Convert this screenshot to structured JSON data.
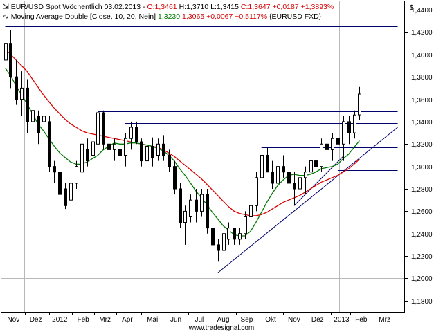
{
  "chart_data": {
    "type": "candlestick",
    "header": {
      "line1": {
        "symbol": "EUR/USD Spot Wöchentlich",
        "date": "03.02.2013",
        "o_text": "O:1,3461",
        "h_text": "H:1,3710",
        "l_text": "L:1,3415",
        "c_text": "C:1,3647",
        "chg_text": "+0,0187",
        "pct_text": "+1,3893%"
      },
      "line2": {
        "indicator": "Moving Average Double [Close, 10, 20, Nein]",
        "v1": "1,3230",
        "v2": "1,3065",
        "chg": "+0,0067",
        "pct": "+0,5117%",
        "ref": "{EURUSD FXD}"
      }
    },
    "currency_label": "$",
    "watermark": "www.tradesignal.com",
    "y_ticks": [
      "1,4400",
      "1,4200",
      "1,4000",
      "1,3800",
      "1,3600",
      "1,3400",
      "1,3200",
      "1,3000",
      "1,2800",
      "1,2600",
      "1,2400",
      "1,2200",
      "1,2000",
      "1,1800"
    ],
    "ylim": [
      1.17,
      1.4475
    ],
    "x_labels": [
      "Nov",
      "Dez",
      "2012",
      "Feb",
      "Mrz",
      "Apr",
      "Mai",
      "Jun",
      "Jul",
      "Aug",
      "Sep",
      "Okt",
      "Nov",
      "Dez",
      "2013",
      "Feb",
      "Mrz"
    ],
    "x_label_bars": [
      1.5,
      5.6,
      10.0,
      14.3,
      18.3,
      22.4,
      27.0,
      31.3,
      35.6,
      40.0,
      44.3,
      48.7,
      53.0,
      57.3,
      61.7,
      65.3,
      69.6
    ],
    "x_bar_range": [
      -0.7,
      73.2
    ],
    "vertical_grid_bars": [
      3.5,
      61.3
    ],
    "horizontal_grid_values": [
      1.4,
      1.3,
      1.2
    ],
    "bars": [
      {
        "o": 1.395,
        "h": 1.425,
        "l": 1.382,
        "c": 1.41
      },
      {
        "o": 1.41,
        "h": 1.422,
        "l": 1.37,
        "c": 1.38
      },
      {
        "o": 1.38,
        "h": 1.395,
        "l": 1.355,
        "c": 1.36
      },
      {
        "o": 1.36,
        "h": 1.385,
        "l": 1.345,
        "c": 1.37
      },
      {
        "o": 1.37,
        "h": 1.378,
        "l": 1.33,
        "c": 1.34
      },
      {
        "o": 1.34,
        "h": 1.355,
        "l": 1.32,
        "c": 1.35
      },
      {
        "o": 1.345,
        "h": 1.35,
        "l": 1.32,
        "c": 1.33
      },
      {
        "o": 1.34,
        "h": 1.36,
        "l": 1.33,
        "c": 1.345
      },
      {
        "o": 1.34,
        "h": 1.345,
        "l": 1.295,
        "c": 1.3
      },
      {
        "o": 1.3,
        "h": 1.305,
        "l": 1.285,
        "c": 1.295
      },
      {
        "o": 1.295,
        "h": 1.3,
        "l": 1.27,
        "c": 1.275
      },
      {
        "o": 1.28,
        "h": 1.285,
        "l": 1.262,
        "c": 1.265
      },
      {
        "o": 1.27,
        "h": 1.29,
        "l": 1.265,
        "c": 1.285
      },
      {
        "o": 1.285,
        "h": 1.305,
        "l": 1.28,
        "c": 1.3
      },
      {
        "o": 1.295,
        "h": 1.325,
        "l": 1.29,
        "c": 1.32
      },
      {
        "o": 1.315,
        "h": 1.325,
        "l": 1.3,
        "c": 1.305
      },
      {
        "o": 1.31,
        "h": 1.33,
        "l": 1.305,
        "c": 1.322
      },
      {
        "o": 1.32,
        "h": 1.35,
        "l": 1.315,
        "c": 1.348
      },
      {
        "o": 1.348,
        "h": 1.35,
        "l": 1.315,
        "c": 1.32
      },
      {
        "o": 1.32,
        "h": 1.33,
        "l": 1.31,
        "c": 1.315
      },
      {
        "o": 1.315,
        "h": 1.325,
        "l": 1.305,
        "c": 1.32
      },
      {
        "o": 1.315,
        "h": 1.325,
        "l": 1.305,
        "c": 1.31
      },
      {
        "o": 1.31,
        "h": 1.33,
        "l": 1.3,
        "c": 1.325
      },
      {
        "o": 1.325,
        "h": 1.34,
        "l": 1.315,
        "c": 1.335
      },
      {
        "o": 1.335,
        "h": 1.34,
        "l": 1.32,
        "c": 1.322
      },
      {
        "o": 1.322,
        "h": 1.325,
        "l": 1.3,
        "c": 1.305
      },
      {
        "o": 1.305,
        "h": 1.325,
        "l": 1.3,
        "c": 1.318
      },
      {
        "o": 1.318,
        "h": 1.326,
        "l": 1.3,
        "c": 1.308
      },
      {
        "o": 1.31,
        "h": 1.325,
        "l": 1.305,
        "c": 1.32
      },
      {
        "o": 1.32,
        "h": 1.328,
        "l": 1.305,
        "c": 1.31
      },
      {
        "o": 1.31,
        "h": 1.315,
        "l": 1.295,
        "c": 1.3
      },
      {
        "o": 1.3,
        "h": 1.305,
        "l": 1.275,
        "c": 1.28
      },
      {
        "o": 1.28,
        "h": 1.285,
        "l": 1.245,
        "c": 1.25
      },
      {
        "o": 1.25,
        "h": 1.265,
        "l": 1.23,
        "c": 1.26
      },
      {
        "o": 1.255,
        "h": 1.275,
        "l": 1.25,
        "c": 1.27
      },
      {
        "o": 1.27,
        "h": 1.28,
        "l": 1.25,
        "c": 1.26
      },
      {
        "o": 1.26,
        "h": 1.28,
        "l": 1.255,
        "c": 1.275
      },
      {
        "o": 1.275,
        "h": 1.28,
        "l": 1.24,
        "c": 1.245
      },
      {
        "o": 1.245,
        "h": 1.25,
        "l": 1.225,
        "c": 1.23
      },
      {
        "o": 1.23,
        "h": 1.235,
        "l": 1.215,
        "c": 1.225
      },
      {
        "o": 1.225,
        "h": 1.245,
        "l": 1.205,
        "c": 1.24
      },
      {
        "o": 1.235,
        "h": 1.25,
        "l": 1.23,
        "c": 1.245
      },
      {
        "o": 1.245,
        "h": 1.245,
        "l": 1.23,
        "c": 1.235
      },
      {
        "o": 1.235,
        "h": 1.245,
        "l": 1.23,
        "c": 1.24
      },
      {
        "o": 1.24,
        "h": 1.26,
        "l": 1.235,
        "c": 1.255
      },
      {
        "o": 1.255,
        "h": 1.275,
        "l": 1.25,
        "c": 1.265
      },
      {
        "o": 1.265,
        "h": 1.295,
        "l": 1.26,
        "c": 1.29
      },
      {
        "o": 1.29,
        "h": 1.315,
        "l": 1.285,
        "c": 1.31
      },
      {
        "o": 1.31,
        "h": 1.317,
        "l": 1.295,
        "c": 1.295
      },
      {
        "o": 1.295,
        "h": 1.305,
        "l": 1.28,
        "c": 1.285
      },
      {
        "o": 1.285,
        "h": 1.305,
        "l": 1.28,
        "c": 1.3
      },
      {
        "o": 1.3,
        "h": 1.31,
        "l": 1.29,
        "c": 1.295
      },
      {
        "o": 1.295,
        "h": 1.3,
        "l": 1.275,
        "c": 1.285
      },
      {
        "o": 1.285,
        "h": 1.295,
        "l": 1.265,
        "c": 1.28
      },
      {
        "o": 1.28,
        "h": 1.295,
        "l": 1.27,
        "c": 1.29
      },
      {
        "o": 1.29,
        "h": 1.3,
        "l": 1.275,
        "c": 1.295
      },
      {
        "o": 1.295,
        "h": 1.31,
        "l": 1.29,
        "c": 1.305
      },
      {
        "o": 1.305,
        "h": 1.32,
        "l": 1.295,
        "c": 1.3
      },
      {
        "o": 1.3,
        "h": 1.325,
        "l": 1.295,
        "c": 1.32
      },
      {
        "o": 1.32,
        "h": 1.33,
        "l": 1.31,
        "c": 1.315
      },
      {
        "o": 1.315,
        "h": 1.33,
        "l": 1.305,
        "c": 1.325
      },
      {
        "o": 1.325,
        "h": 1.34,
        "l": 1.31,
        "c": 1.32
      },
      {
        "o": 1.32,
        "h": 1.345,
        "l": 1.305,
        "c": 1.34
      },
      {
        "o": 1.34,
        "h": 1.345,
        "l": 1.32,
        "c": 1.33
      },
      {
        "o": 1.33,
        "h": 1.35,
        "l": 1.325,
        "c": 1.346
      },
      {
        "o": 1.3461,
        "h": 1.371,
        "l": 1.3415,
        "c": 1.3647
      }
    ],
    "ma_fast": {
      "name": "MA 10",
      "color": "#007a00",
      "values": [
        1.388,
        1.381,
        1.372,
        1.364,
        1.356,
        1.347,
        1.338,
        1.332,
        1.325,
        1.318,
        1.312,
        1.308,
        1.304,
        1.302,
        1.302,
        1.304,
        1.307,
        1.31,
        1.315,
        1.318,
        1.321,
        1.32,
        1.32,
        1.321,
        1.321,
        1.32,
        1.319,
        1.318,
        1.316,
        1.314,
        1.31,
        1.305,
        1.298,
        1.292,
        1.285,
        1.278,
        1.272,
        1.266,
        1.259,
        1.253,
        1.247,
        1.243,
        1.239,
        1.238,
        1.238,
        1.242,
        1.25,
        1.259,
        1.268,
        1.276,
        1.283,
        1.288,
        1.292,
        1.293,
        1.292,
        1.292,
        1.293,
        1.295,
        1.298,
        1.299,
        1.3,
        1.302,
        1.307,
        1.311,
        1.317,
        1.323
      ]
    },
    "ma_slow": {
      "name": "MA 20",
      "color": "#dd0000",
      "values": [
        1.405,
        1.4,
        1.395,
        1.39,
        1.385,
        1.378,
        1.371,
        1.364,
        1.358,
        1.352,
        1.347,
        1.342,
        1.338,
        1.335,
        1.332,
        1.33,
        1.329,
        1.328,
        1.327,
        1.326,
        1.325,
        1.324,
        1.323,
        1.322,
        1.321,
        1.32,
        1.319,
        1.318,
        1.317,
        1.315,
        1.312,
        1.309,
        1.305,
        1.301,
        1.297,
        1.293,
        1.289,
        1.284,
        1.279,
        1.274,
        1.269,
        1.264,
        1.26,
        1.258,
        1.257,
        1.256,
        1.256,
        1.257,
        1.259,
        1.262,
        1.265,
        1.268,
        1.27,
        1.272,
        1.274,
        1.277,
        1.28,
        1.283,
        1.286,
        1.288,
        1.29,
        1.292,
        1.295,
        1.298,
        1.302,
        1.3065
      ]
    },
    "support_resistance": [
      {
        "value": 1.425,
        "x_from_bar": 0,
        "x_to_bar": 72
      },
      {
        "value": 1.349,
        "x_from_bar": 17,
        "x_to_bar": 72
      },
      {
        "value": 1.339,
        "x_from_bar": 22,
        "x_to_bar": 72
      },
      {
        "value": 1.332,
        "x_from_bar": 60,
        "x_to_bar": 72
      },
      {
        "value": 1.317,
        "x_from_bar": 47,
        "x_to_bar": 72
      },
      {
        "value": 1.297,
        "x_from_bar": 61,
        "x_to_bar": 72
      },
      {
        "value": 1.266,
        "x_from_bar": 53,
        "x_to_bar": 72
      },
      {
        "value": 1.205,
        "x_from_bar": 40,
        "x_to_bar": 72
      }
    ],
    "trend_lines": [
      {
        "from_bar": 39,
        "from_value": 1.205,
        "to_bar": 72,
        "to_value": 1.335
      },
      {
        "from_bar": 53,
        "from_value": 1.265,
        "to_bar": 62,
        "to_value": 1.309
      }
    ],
    "colors": {
      "bull_body": "#ffffff",
      "bear_body": "#000000",
      "sr_line": "#00006e",
      "grid": "#b8b8b8",
      "header_red": "#d40000",
      "header_green": "#007a00"
    }
  }
}
